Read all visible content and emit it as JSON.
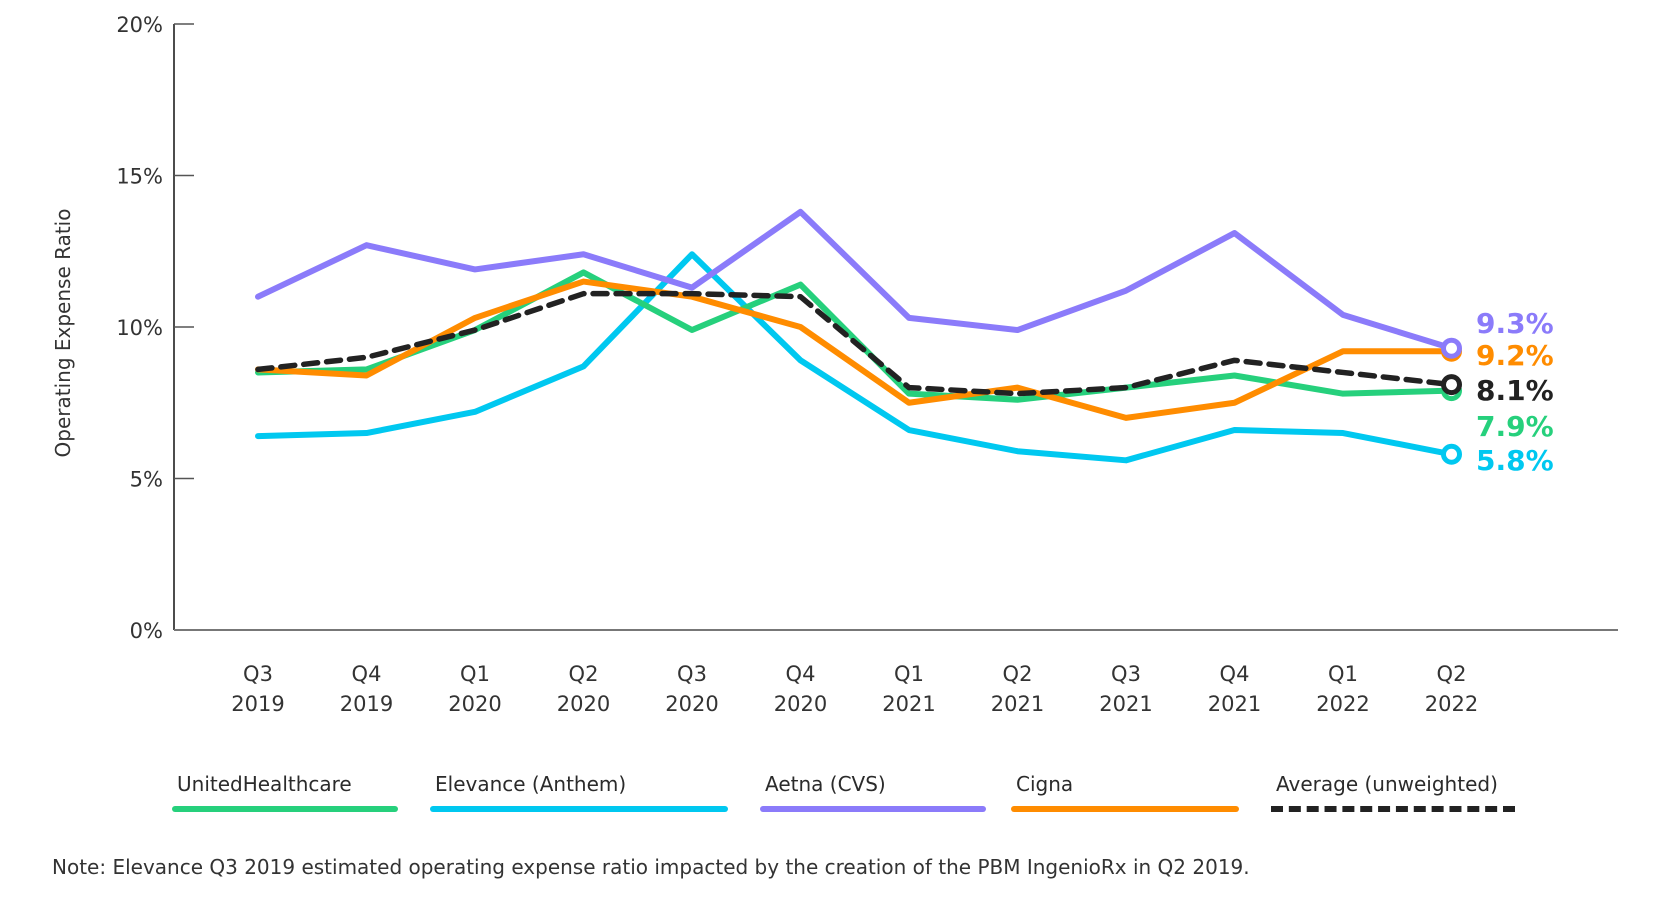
{
  "chart_data": {
    "type": "line",
    "title": "",
    "xlabel": "",
    "ylabel": "Operating Expense Ratio",
    "ylim": [
      0,
      20
    ],
    "yticks": [
      0,
      5,
      10,
      15,
      20
    ],
    "ytick_labels": [
      "0%",
      "5%",
      "10%",
      "15%",
      "20%"
    ],
    "grid": false,
    "legend_position": "bottom",
    "categories": [
      [
        "Q3",
        "2019"
      ],
      [
        "Q4",
        "2019"
      ],
      [
        "Q1",
        "2020"
      ],
      [
        "Q2",
        "2020"
      ],
      [
        "Q3",
        "2020"
      ],
      [
        "Q4",
        "2020"
      ],
      [
        "Q1",
        "2021"
      ],
      [
        "Q2",
        "2021"
      ],
      [
        "Q3",
        "2021"
      ],
      [
        "Q4",
        "2021"
      ],
      [
        "Q1",
        "2022"
      ],
      [
        "Q2",
        "2022"
      ]
    ],
    "series": [
      {
        "name": "UnitedHealthcare",
        "color": "#26D07C",
        "dashed": false,
        "values": [
          8.5,
          8.6,
          9.9,
          11.8,
          9.9,
          11.4,
          7.8,
          7.6,
          8.0,
          8.4,
          7.8,
          7.9
        ],
        "end_label": "7.9%"
      },
      {
        "name": "Elevance (Anthem)",
        "color": "#00C8F0",
        "dashed": false,
        "values": [
          6.4,
          6.5,
          7.2,
          8.7,
          12.4,
          8.9,
          6.6,
          5.9,
          5.6,
          6.6,
          6.5,
          5.8
        ],
        "end_label": "5.8%"
      },
      {
        "name": "Aetna (CVS)",
        "color": "#8B7BFA",
        "dashed": false,
        "values": [
          11.0,
          12.7,
          11.9,
          12.4,
          11.3,
          13.8,
          10.3,
          9.9,
          11.2,
          13.1,
          10.4,
          9.3
        ],
        "end_label": "9.3%"
      },
      {
        "name": "Cigna",
        "color": "#FF8C00",
        "dashed": false,
        "values": [
          8.6,
          8.4,
          10.3,
          11.5,
          11.0,
          10.0,
          7.5,
          8.0,
          7.0,
          7.5,
          9.2,
          9.2
        ],
        "end_label": "9.2%"
      },
      {
        "name": "Average (unweighted)",
        "color": "#222222",
        "dashed": true,
        "values": [
          8.6,
          9.0,
          9.9,
          11.1,
          11.1,
          11.0,
          8.0,
          7.8,
          8.0,
          8.9,
          8.5,
          8.1
        ],
        "end_label": "8.1%"
      }
    ],
    "note": "Note: Elevance Q3 2019 estimated operating expense ratio impacted by the creation of the PBM IngenioRx in Q2 2019."
  },
  "legend": [
    {
      "label": "UnitedHealthcare"
    },
    {
      "label": "Elevance (Anthem)"
    },
    {
      "label": "Aetna (CVS)"
    },
    {
      "label": "Cigna"
    },
    {
      "label": "Average (unweighted)"
    }
  ]
}
